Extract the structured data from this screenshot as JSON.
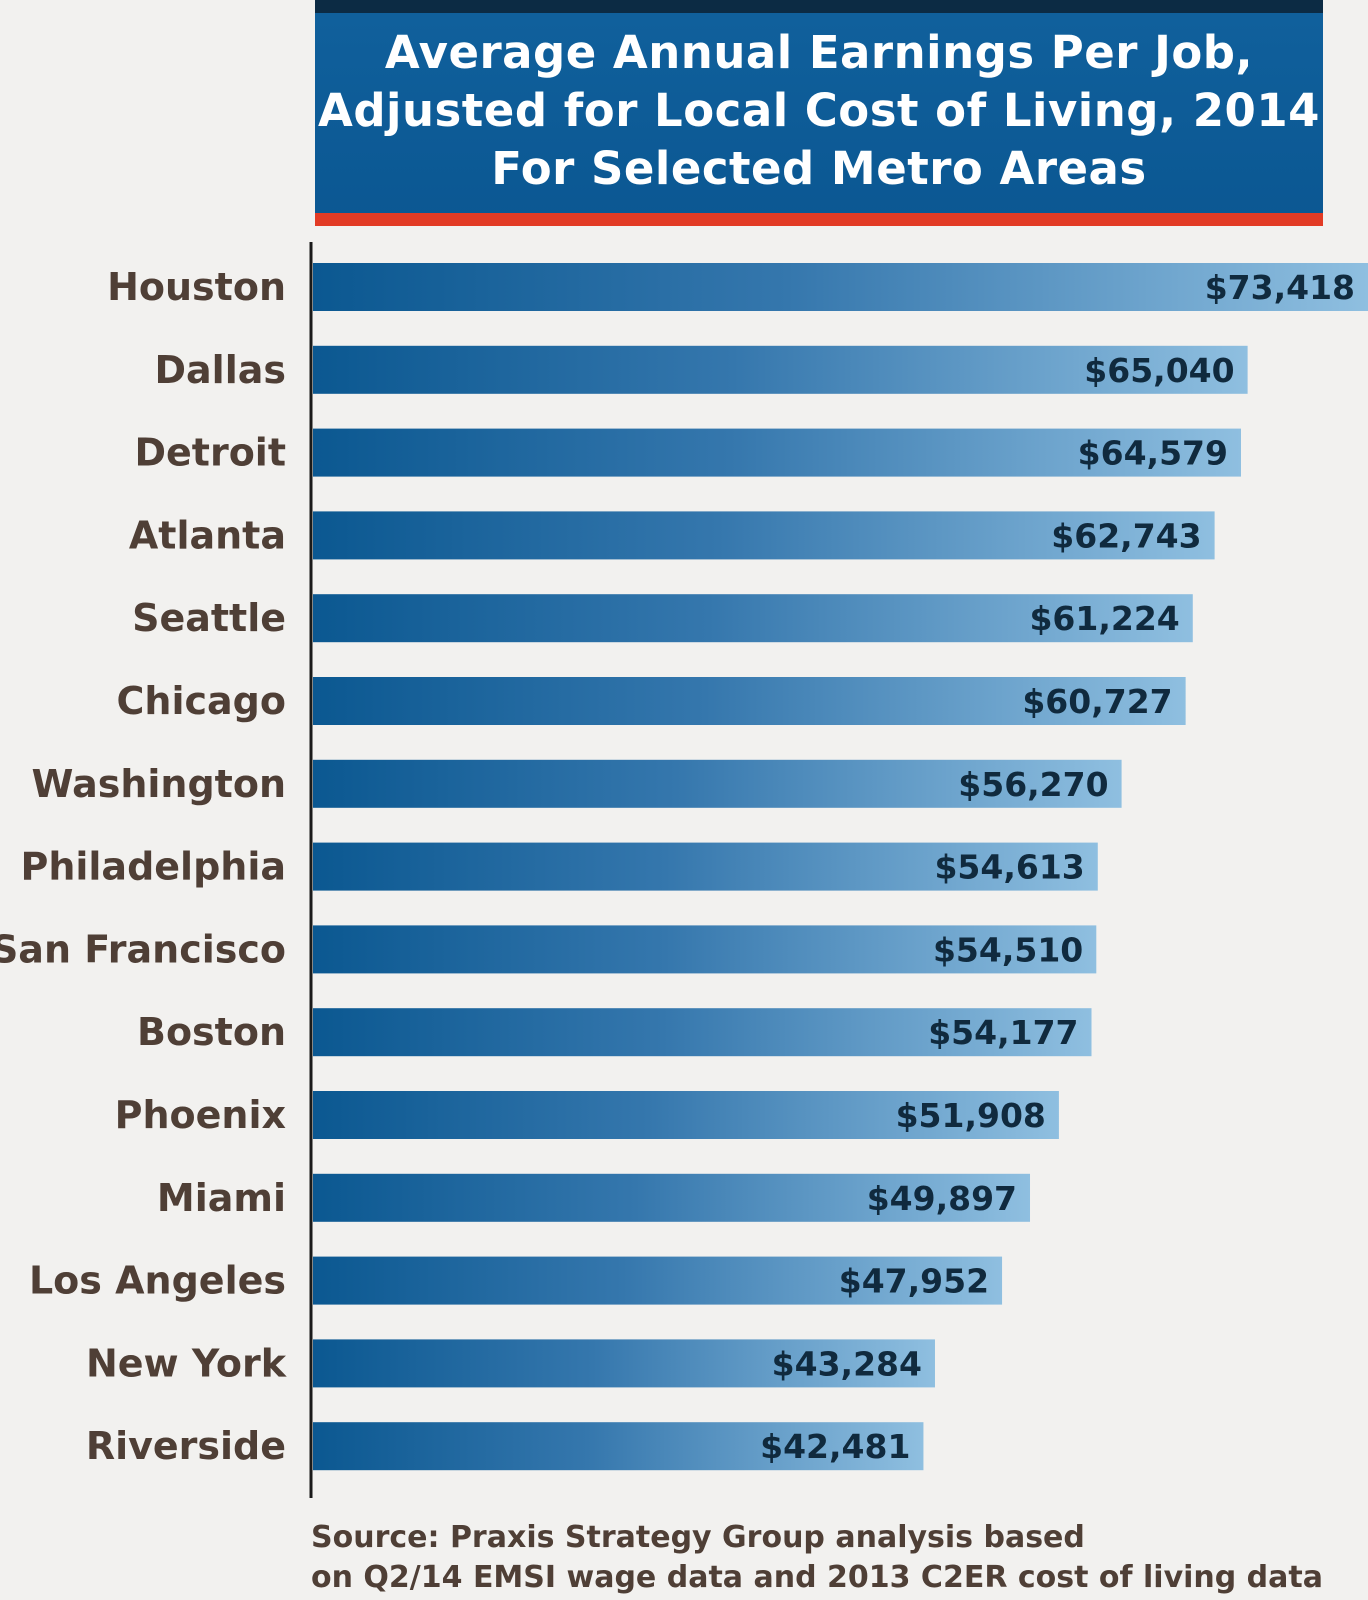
{
  "chart_data": {
    "type": "bar",
    "orientation": "horizontal",
    "title": "Average Annual Earnings Per Job,",
    "title_line2": "Adjusted for Local Cost of Living, 2014",
    "subtitle": "For Selected Metro Areas",
    "categories": [
      "Houston",
      "Dallas",
      "Detroit",
      "Atlanta",
      "Seattle",
      "Chicago",
      "Washington",
      "Philadelphia",
      "San Francisco",
      "Boston",
      "Phoenix",
      "Miami",
      "Los Angeles",
      "New York",
      "Riverside"
    ],
    "values": [
      73418,
      65040,
      64579,
      62743,
      61224,
      60727,
      56270,
      54613,
      54510,
      54177,
      51908,
      49897,
      47952,
      43284,
      42481
    ],
    "value_labels": [
      "$73,418",
      "$65,040",
      "$64,579",
      "$62,743",
      "$61,224",
      "$60,727",
      "$56,270",
      "$54,613",
      "$54,510",
      "$54,177",
      "$51,908",
      "$49,897",
      "$47,952",
      "$43,284",
      "$42,481"
    ],
    "xlabel": "",
    "ylabel": "",
    "xlim": [
      0,
      73418
    ],
    "grid": false,
    "legend": "none",
    "colors": {
      "bar_start": "#0b5891",
      "bar_end": "#8fbfe0",
      "title_bg": "#0e5c98",
      "title_top_stripe": "#0c2b44",
      "title_red_stripe": "#e23b25",
      "category_text": "#4f3f36",
      "value_text": "#102a3e",
      "axis": "#1a1a1a",
      "background": "#f2f1ef"
    }
  },
  "source": {
    "line1": "Source: Praxis Strategy Group analysis based",
    "line2": "on Q2/14 EMSI wage data and 2013 C2ER cost of living data"
  }
}
